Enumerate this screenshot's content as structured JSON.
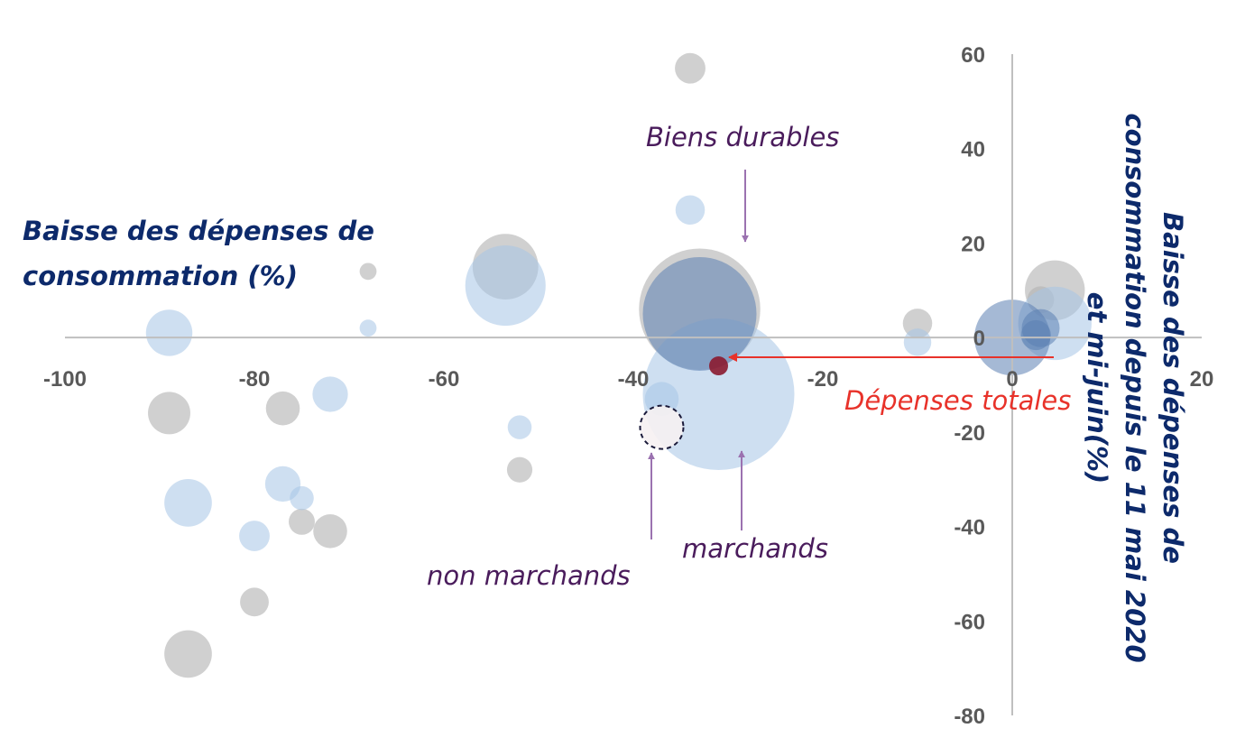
{
  "chart_data": {
    "type": "scatter",
    "subtype": "bubble",
    "xlim": [
      -100,
      20
    ],
    "ylim": [
      -80,
      60
    ],
    "x_ticks": [
      -100,
      -80,
      -60,
      -40,
      -20,
      0,
      20
    ],
    "y_ticks": [
      60,
      40,
      20,
      0,
      -20,
      -40,
      -60,
      -80
    ],
    "xlabel": [
      "Baisse des dépenses de",
      "consommation (%)"
    ],
    "ylabel": [
      "Baisse des dépenses de",
      "consommation depuis le 11 mai 2020",
      "et mi-juin(%)"
    ],
    "grid": false,
    "colors": {
      "grey_series": "#b3b3b3",
      "blue_series": "#a6c4e6",
      "dark_blue": "#5b80b2",
      "total_marker": "#8b1a2f",
      "annotation_arrow": "#9b72b0",
      "annotation_text": "#4a1c5c",
      "highlight_text": "#e8322a",
      "highlight_arrow": "#e8322a",
      "axis_title": "#0d2a6b"
    },
    "series": [
      {
        "points": [
          {
            "x": -34.0,
            "y": 57.0,
            "size": 2.6
          },
          {
            "x": -53.5,
            "y": 15.0,
            "size": 12.0
          },
          {
            "x": -68.0,
            "y": 14.0,
            "size": 0.8
          },
          {
            "x": -33.0,
            "y": 6.0,
            "size": 41.0
          },
          {
            "x": -10.0,
            "y": 3.0,
            "size": 2.4
          },
          {
            "x": 4.5,
            "y": 10.0,
            "size": 10.0
          },
          {
            "x": 3.0,
            "y": 8.0,
            "size": 2.0
          },
          {
            "x": -89.0,
            "y": -16.0,
            "size": 5.0
          },
          {
            "x": -77.0,
            "y": -15.0,
            "size": 3.2
          },
          {
            "x": -52.0,
            "y": -28.0,
            "size": 1.8
          },
          {
            "x": -75.0,
            "y": -39.0,
            "size": 1.9
          },
          {
            "x": -72.0,
            "y": -41.0,
            "size": 3.2
          },
          {
            "x": -80.0,
            "y": -56.0,
            "size": 2.3
          },
          {
            "x": -87.0,
            "y": -67.0,
            "size": 6.3
          }
        ]
      },
      {
        "points": [
          {
            "x": -34.0,
            "y": 27.0,
            "size": 2.4
          },
          {
            "x": -53.5,
            "y": 11.0,
            "size": 18.0
          },
          {
            "x": -68.0,
            "y": 2.0,
            "size": 0.8
          },
          {
            "x": -89.0,
            "y": 1.0,
            "size": 6.0
          },
          {
            "x": -72.0,
            "y": -12.0,
            "size": 3.5
          },
          {
            "x": -52.0,
            "y": -19.0,
            "size": 1.6
          },
          {
            "x": -77.0,
            "y": -31.0,
            "size": 3.5
          },
          {
            "x": -75.0,
            "y": -34.0,
            "size": 1.6
          },
          {
            "x": -87.0,
            "y": -35.0,
            "size": 6.3
          },
          {
            "x": -80.0,
            "y": -42.0,
            "size": 2.6
          },
          {
            "x": -10.0,
            "y": -1.0,
            "size": 2.1
          },
          {
            "x": 4.5,
            "y": 3.0,
            "size": 15.0
          },
          {
            "x": -31.0,
            "y": -12.0,
            "size": 64.0
          },
          {
            "x": -37.0,
            "y": -13.0,
            "size": 3.2
          }
        ]
      },
      {
        "points": [
          {
            "x": -33.0,
            "y": 5.0,
            "size": 36.0
          },
          {
            "x": 0.0,
            "y": 0.0,
            "size": 16.0
          },
          {
            "x": 3.0,
            "y": 2.0,
            "size": 4.0
          },
          {
            "x": 2.5,
            "y": 0.5,
            "size": 2.5
          }
        ]
      },
      {
        "points": [
          {
            "x": -31.0,
            "y": -6.0,
            "size": 1.0
          }
        ]
      }
    ],
    "annotations": [
      {
        "text": "Biens durables",
        "color": "#4a1c5c"
      },
      {
        "text": "Dépenses totales",
        "color": "#e8322a"
      },
      {
        "text": "marchands",
        "color": "#4a1c5c"
      },
      {
        "text": "non marchands",
        "color": "#4a1c5c"
      }
    ]
  }
}
